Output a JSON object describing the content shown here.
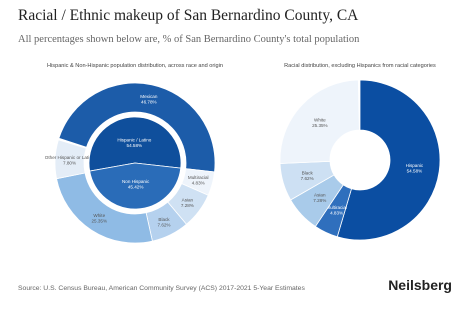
{
  "title": "Racial / Ethnic makeup of San Bernardino County, CA",
  "subtitle": "All percentages shown below are, % of San Bernardino County's total population",
  "chart_data": [
    {
      "type": "donut",
      "title": "Hispanic & Non-Hispanic population distribution, across race and origin",
      "rings": [
        {
          "categories": [
            "Hispanic / Latino",
            "Non Hispanic"
          ],
          "values": [
            54.58,
            45.42
          ],
          "value_labels": [
            "54.58%",
            "45.42%"
          ],
          "colors": [
            "#0f4f9c",
            "#2a6cb8"
          ]
        },
        {
          "categories": [
            "Mexican",
            "Multiracial",
            "Asian",
            "Black",
            "White",
            "Other Hispanic or Latino"
          ],
          "values": [
            46.78,
            4.83,
            7.28,
            7.62,
            25.35,
            7.8
          ],
          "value_labels": [
            "46.78%",
            "4.83%",
            "7.28%",
            "7.62%",
            "25.35%",
            "7.80%"
          ],
          "colors": [
            "#1c5ca9",
            "#eef4fb",
            "#cfe1f3",
            "#b5d1ee",
            "#8fbbe5",
            "#e4edf7"
          ]
        }
      ]
    },
    {
      "type": "donut",
      "title": "Racial distribution, excluding Hispanics from racial categories",
      "rings": [
        {
          "categories": [
            "Hispanic",
            "Multiracial",
            "Asian",
            "Black",
            "White"
          ],
          "values": [
            54.58,
            4.83,
            7.28,
            7.62,
            25.35
          ],
          "value_labels": [
            "54.58%",
            "4.83%",
            "7.28%",
            "7.62%",
            "25.35%"
          ],
          "colors": [
            "#0b4ea2",
            "#2f6fbd",
            "#a9cbea",
            "#cde0f3",
            "#eef4fb"
          ]
        }
      ]
    }
  ],
  "source": "Source: U.S. Census Bureau, American Community Survey (ACS) 2017-2021 5-Year Estimates",
  "brand": "Neilsberg"
}
